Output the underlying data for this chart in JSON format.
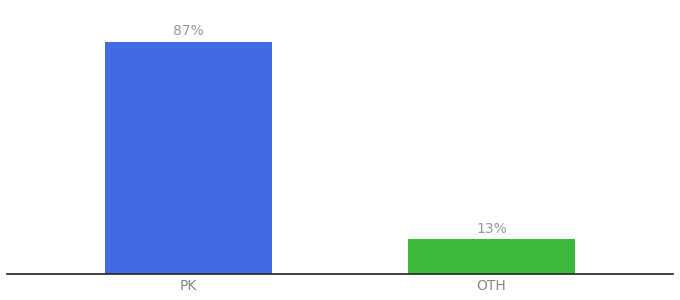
{
  "categories": [
    "PK",
    "OTH"
  ],
  "values": [
    87,
    13
  ],
  "bar_colors": [
    "#4169e1",
    "#3cb93c"
  ],
  "labels": [
    "87%",
    "13%"
  ],
  "ylim": [
    0,
    100
  ],
  "background_color": "#ffffff",
  "bar_width": 0.55,
  "label_fontsize": 10,
  "tick_fontsize": 10,
  "label_color": "#999999",
  "tick_color": "#888888",
  "spine_color": "#222222"
}
